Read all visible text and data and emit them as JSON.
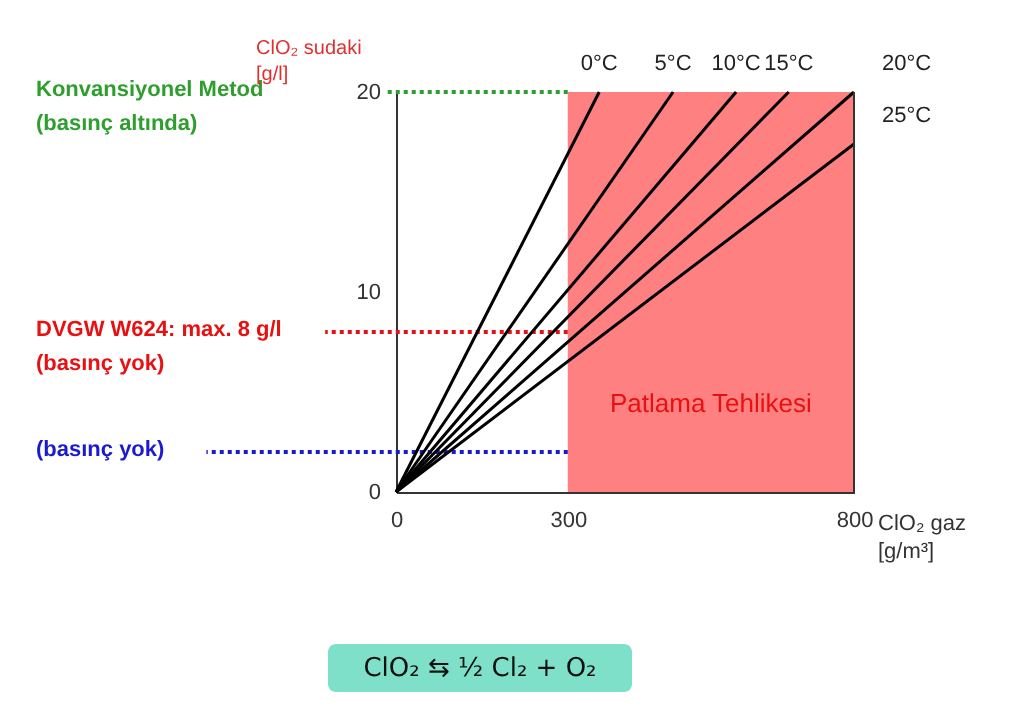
{
  "chart_data": {
    "type": "line",
    "xlabel": "ClO₂ gaz\n[g/m³]",
    "ylabel": "ClO₂ sudaki\n[g/l]",
    "xlim": [
      0,
      800
    ],
    "xticks": [
      0,
      300,
      800
    ],
    "ylim": [
      0,
      20
    ],
    "yticks": [
      0,
      10,
      20
    ],
    "grid": false,
    "marker": "none",
    "line_style": "solid",
    "series": [
      {
        "name": "0°C",
        "color": "#000000",
        "x": [
          0,
          355
        ],
        "values": [
          0,
          20
        ]
      },
      {
        "name": "5°C",
        "color": "#000000",
        "x": [
          0,
          484
        ],
        "values": [
          0,
          20
        ]
      },
      {
        "name": "10°C",
        "color": "#000000",
        "x": [
          0,
          594
        ],
        "values": [
          0,
          20
        ]
      },
      {
        "name": "15°C",
        "color": "#000000",
        "x": [
          0,
          686
        ],
        "values": [
          0,
          20
        ]
      },
      {
        "name": "20°C",
        "color": "#000000",
        "x": [
          0,
          800
        ],
        "values": [
          0,
          20
        ]
      },
      {
        "name": "25°C",
        "color": "#000000",
        "x": [
          0,
          800
        ],
        "values": [
          0,
          17.4
        ]
      }
    ],
    "bands": [
      {
        "axis": "x",
        "from": 300,
        "to": 800,
        "label": "Patlama Tehlikesi",
        "color": "#ff8080"
      }
    ],
    "ref_lines": [
      {
        "axis": "y",
        "value": 20,
        "label": "Konvansiyonel Metod\n(basınç altında)",
        "color": "#2e9e2e",
        "line_style": "dotted"
      },
      {
        "axis": "y",
        "value": 8,
        "label": "DVGW W624: max. 8 g/l\n(basınç yok)",
        "color": "#e81010",
        "line_style": "dotted"
      },
      {
        "axis": "y",
        "value": 2,
        "label": "(basınç yok)",
        "color": "#1a1ad0",
        "line_style": "dotted"
      }
    ],
    "annotations": [
      "ClO₂ ⇆ ½ Cl₂ + O₂"
    ]
  }
}
